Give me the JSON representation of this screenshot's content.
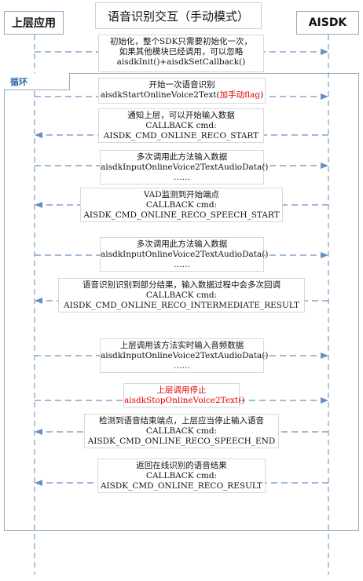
{
  "title": "语音识别交互（手动模式）",
  "participants": {
    "left": "上层应用",
    "right": "AISDK"
  },
  "loop_label": "循环",
  "colors": {
    "lifeline": "#7f9db9",
    "arrow": "#6a8fbf",
    "loop_border": "#8eaac8",
    "highlight": "#e00000"
  },
  "messages": {
    "init": {
      "line1": "初始化，整个SDK只需要初始化一次，",
      "line2": "如果其他模块已经调用，可以忽略",
      "line3": "aisdkInit()+aisdkSetCallback()"
    },
    "start": {
      "line1": "开始一次语音识别",
      "line2_prefix": "aisdkStartOnlineVoice2Text(",
      "line2_red": "加手动flag",
      "line2_suffix": ")"
    },
    "reco_start": {
      "line1": "通知上层，可以开始输入数据",
      "line2": "CALLBACK cmd:",
      "line3": "AISDK_CMD_ONLINE_RECO_START"
    },
    "input1": {
      "line1": "多次调用此方法输入数据",
      "line2": "aisdkInputOnlineVoice2TextAudioData()",
      "line3": "……"
    },
    "speech_start": {
      "line1": "VAD监测到开始端点",
      "line2": "CALLBACK cmd:",
      "line3": "AISDK_CMD_ONLINE_RECO_SPEECH_START"
    },
    "input2": {
      "line1": "多次调用此方法输入数据",
      "line2": "aisdkInputOnlineVoice2TextAudioData()",
      "line3": "……"
    },
    "intermediate": {
      "line1": "语音识别识别到部分结果，输入数据过程中会多次回调",
      "line2": "CALLBACK cmd:",
      "line3": "AISDK_CMD_ONLINE_RECO_INTERMEDIATE_RESULT"
    },
    "input3": {
      "line1": "上层调用该方法实时输入音频数据",
      "line2": "aisdkInputOnlineVoice2TextAudioData()",
      "line3": "……"
    },
    "stop": {
      "line1": "上层调用停止",
      "line2": "aisdkStopOnlineVoice2Text()"
    },
    "speech_end": {
      "line1": "检测到语音结束端点，上层应当停止输入语音",
      "line2": "CALLBACK cmd:",
      "line3": "AISDK_CMD_ONLINE_RECO_SPEECH_END"
    },
    "result": {
      "line1": "返回在线识别的语音结果",
      "line2": "CALLBACK cmd:",
      "line3": "AISDK_CMD_ONLINE_RECO_RESULT"
    }
  }
}
